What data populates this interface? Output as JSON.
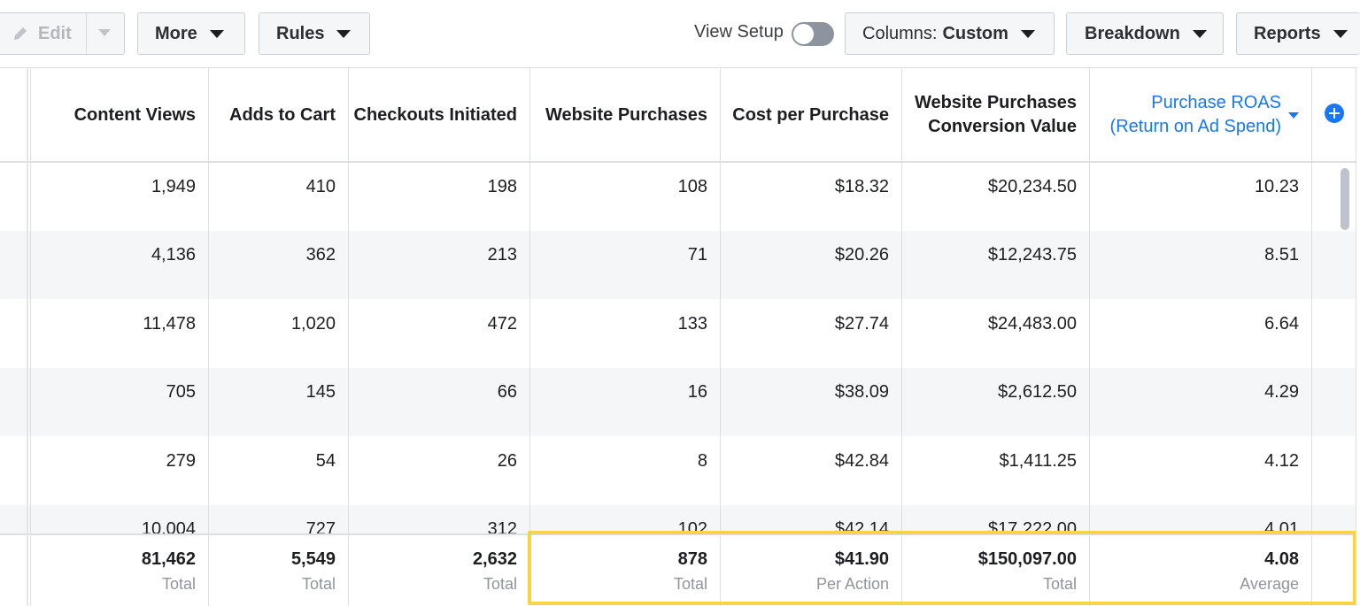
{
  "toolbar": {
    "edit_label": "Edit",
    "more_label": "More",
    "rules_label": "Rules",
    "view_setup_label": "View Setup",
    "view_setup_on": false,
    "columns_label": "Columns:",
    "columns_value": "Custom",
    "breakdown_label": "Breakdown",
    "reports_label": "Reports"
  },
  "columns": [
    {
      "line1": "Content Views",
      "line2": ""
    },
    {
      "line1": "Adds to Cart",
      "line2": ""
    },
    {
      "line1": "Checkouts Initiated",
      "line2": ""
    },
    {
      "line1": "Website Purchases",
      "line2": ""
    },
    {
      "line1": "Cost per Purchase",
      "line2": ""
    },
    {
      "line1": "Website Purchases",
      "line2": "Conversion Value"
    },
    {
      "line1": "Purchase ROAS",
      "line2": "(Return on Ad Spend)",
      "sorted": true
    }
  ],
  "rows": [
    [
      "1,949",
      "410",
      "198",
      "108",
      "$18.32",
      "$20,234.50",
      "10.23"
    ],
    [
      "4,136",
      "362",
      "213",
      "71",
      "$20.26",
      "$12,243.75",
      "8.51"
    ],
    [
      "11,478",
      "1,020",
      "472",
      "133",
      "$27.74",
      "$24,483.00",
      "6.64"
    ],
    [
      "705",
      "145",
      "66",
      "16",
      "$38.09",
      "$2,612.50",
      "4.29"
    ],
    [
      "279",
      "54",
      "26",
      "8",
      "$42.84",
      "$1,411.25",
      "4.12"
    ],
    [
      "10,004",
      "727",
      "312",
      "102",
      "$42.14",
      "$17,222.00",
      "4.01"
    ]
  ],
  "totals": [
    {
      "value": "81,462",
      "label": "Total"
    },
    {
      "value": "5,549",
      "label": "Total"
    },
    {
      "value": "2,632",
      "label": "Total"
    },
    {
      "value": "878",
      "label": "Total"
    },
    {
      "value": "$41.90",
      "label": "Per Action"
    },
    {
      "value": "$150,097.00",
      "label": "Total"
    },
    {
      "value": "4.08",
      "label": "Average"
    }
  ],
  "colors": {
    "accent": "#1877f2",
    "highlight": "#f5d547"
  }
}
